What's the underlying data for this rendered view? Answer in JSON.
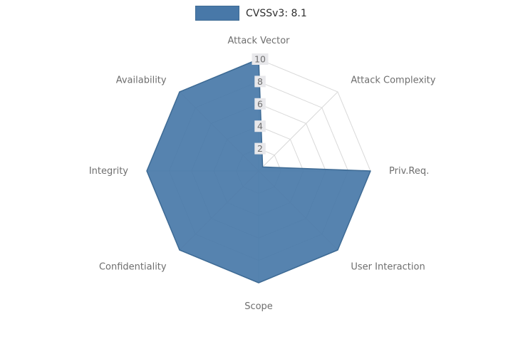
{
  "legend": {
    "label": "CVSSv3: 8.1"
  },
  "chart_data": {
    "type": "radar",
    "title": "CVSSv3: 8.1",
    "categories": [
      "Attack Vector",
      "Attack Complexity",
      "Priv.Req.",
      "User Interaction",
      "Scope",
      "Confidentiality",
      "Integrity",
      "Availability"
    ],
    "series": [
      {
        "name": "CVSSv3: 8.1",
        "values": [
          10,
          0.5,
          10,
          10,
          10,
          10,
          10,
          10
        ]
      }
    ],
    "radial_ticks": [
      2,
      4,
      6,
      8,
      10
    ],
    "range": [
      0,
      10
    ],
    "grid": true,
    "legend_position": "top-center",
    "fill_color": "#4878a8",
    "fill_opacity": 0.92,
    "line_color": "#3d6a94",
    "grid_color": "#d9d9d9",
    "label_color": "#6e6e6e",
    "tick_color": "#6f6f6f",
    "tick_bg": "#e8e8eb"
  }
}
